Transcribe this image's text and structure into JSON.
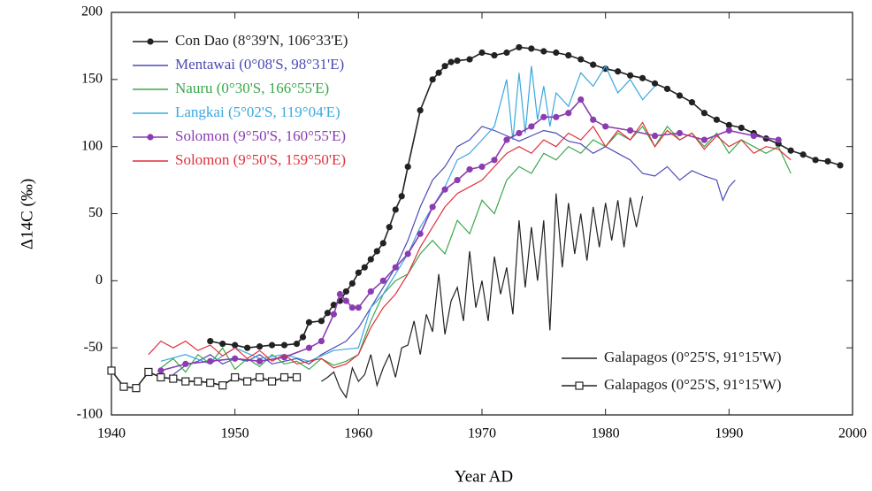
{
  "chart_data": {
    "type": "line",
    "x_label": "Year AD",
    "y_label": "Δ14C (‰)",
    "xlim": [
      1940,
      2000
    ],
    "xticks": [
      1940,
      1950,
      1960,
      1970,
      1980,
      1990,
      2000
    ],
    "ylim": [
      -100,
      200
    ],
    "yticks": [
      -100,
      -50,
      0,
      50,
      100,
      150,
      200
    ],
    "grid": false,
    "series": [
      {
        "name": "Con Dao (8°39'N, 106°33'E)",
        "color": "#222222",
        "marker": "circle",
        "legend": "top-left",
        "x": [
          1948,
          1949,
          1950,
          1951,
          1952,
          1953,
          1954,
          1955,
          1955.5,
          1956,
          1957,
          1957.5,
          1958,
          1958.5,
          1959,
          1959.5,
          1960,
          1960.5,
          1961,
          1961.5,
          1962,
          1962.5,
          1963,
          1963.5,
          1964,
          1965,
          1966,
          1966.5,
          1967,
          1967.5,
          1968,
          1969,
          1970,
          1971,
          1972,
          1973,
          1974,
          1975,
          1976,
          1977,
          1978,
          1979,
          1980,
          1981,
          1982,
          1983,
          1984,
          1985,
          1986,
          1987,
          1988,
          1989,
          1990,
          1991,
          1992,
          1993,
          1994,
          1995,
          1996,
          1997,
          1998,
          1999
        ],
        "values": [
          -45,
          -47,
          -48,
          -50,
          -49,
          -48,
          -48,
          -47,
          -42,
          -31,
          -30,
          -24,
          -18,
          -15,
          -8,
          -2,
          6,
          10,
          16,
          22,
          28,
          40,
          53,
          63,
          85,
          127,
          150,
          155,
          160,
          163,
          164,
          165,
          170,
          168,
          170,
          174,
          173,
          171,
          170,
          168,
          165,
          161,
          158,
          156,
          153,
          151,
          147,
          143,
          138,
          133,
          125,
          120,
          116,
          114,
          110,
          106,
          102,
          97,
          94,
          90,
          89,
          86
        ]
      },
      {
        "name": "Mentawai (0°08'S, 98°31'E)",
        "color": "#4b4bb4",
        "legend": "top-left",
        "x": [
          1945,
          1946,
          1947,
          1948,
          1949,
          1950,
          1951,
          1952,
          1953,
          1954,
          1955,
          1956,
          1957,
          1958,
          1959,
          1960,
          1961,
          1962,
          1963,
          1964,
          1965,
          1966,
          1967,
          1968,
          1969,
          1970,
          1971,
          1972,
          1973,
          1974,
          1975,
          1976,
          1977,
          1978,
          1979,
          1980,
          1981,
          1982,
          1983,
          1984,
          1985,
          1986,
          1987,
          1988,
          1989,
          1989.5,
          1990,
          1990.5
        ],
        "values": [
          -70,
          -63,
          -60,
          -55,
          -62,
          -58,
          -60,
          -55,
          -62,
          -60,
          -58,
          -62,
          -55,
          -50,
          -45,
          -35,
          -20,
          -5,
          10,
          30,
          55,
          75,
          85,
          100,
          105,
          115,
          112,
          108,
          104,
          108,
          112,
          110,
          104,
          102,
          95,
          100,
          95,
          90,
          80,
          78,
          85,
          75,
          82,
          78,
          75,
          60,
          70,
          75
        ]
      },
      {
        "name": "Nauru (0°30'S, 166°55'E)",
        "color": "#3aa84a",
        "legend": "top-left",
        "x": [
          1944,
          1945,
          1946,
          1947,
          1948,
          1949,
          1950,
          1951,
          1952,
          1953,
          1954,
          1955,
          1956,
          1957,
          1958,
          1959,
          1960,
          1961,
          1962,
          1963,
          1964,
          1965,
          1966,
          1967,
          1968,
          1969,
          1970,
          1971,
          1972,
          1973,
          1974,
          1975,
          1976,
          1977,
          1978,
          1979,
          1980,
          1981,
          1982,
          1983,
          1984,
          1985,
          1986,
          1987,
          1988,
          1989,
          1990,
          1991,
          1992,
          1993,
          1994,
          1995
        ],
        "values": [
          -65,
          -58,
          -68,
          -55,
          -62,
          -50,
          -66,
          -58,
          -64,
          -55,
          -62,
          -60,
          -66,
          -58,
          -63,
          -60,
          -55,
          -30,
          -10,
          0,
          5,
          20,
          30,
          20,
          45,
          35,
          60,
          50,
          75,
          85,
          80,
          95,
          90,
          100,
          95,
          105,
          100,
          110,
          105,
          115,
          100,
          115,
          105,
          110,
          100,
          110,
          95,
          105,
          100,
          95,
          100,
          80
        ]
      },
      {
        "name": "Langkai (5°02'S, 119°04'E)",
        "color": "#3aa8e0",
        "legend": "top-left",
        "x": [
          1944,
          1946,
          1948,
          1950,
          1952,
          1954,
          1956,
          1958,
          1960,
          1961,
          1962,
          1963,
          1964,
          1965,
          1966,
          1967,
          1968,
          1969,
          1970,
          1971,
          1972,
          1972.5,
          1973,
          1973.5,
          1974,
          1974.5,
          1975,
          1975.5,
          1976,
          1977,
          1978,
          1979,
          1980,
          1981,
          1982,
          1983,
          1984
        ],
        "values": [
          -60,
          -55,
          -62,
          -50,
          -58,
          -55,
          -60,
          -52,
          -50,
          -20,
          -10,
          5,
          20,
          40,
          55,
          70,
          90,
          95,
          105,
          115,
          150,
          105,
          155,
          110,
          160,
          120,
          145,
          115,
          140,
          130,
          155,
          145,
          160,
          140,
          150,
          135,
          145
        ]
      },
      {
        "name": "Solomon (9°50'S, 160°55'E)",
        "color": "#8a3cb0",
        "marker": "circle",
        "legend": "top-left",
        "x": [
          1944,
          1946,
          1948,
          1950,
          1952,
          1954,
          1956,
          1957,
          1958,
          1958.5,
          1959,
          1959.5,
          1960,
          1961,
          1962,
          1963,
          1964,
          1965,
          1966,
          1967,
          1968,
          1969,
          1970,
          1971,
          1972,
          1973,
          1974,
          1975,
          1976,
          1977,
          1978,
          1979,
          1980,
          1982,
          1984,
          1986,
          1988,
          1990,
          1992,
          1994
        ],
        "values": [
          -67,
          -62,
          -60,
          -58,
          -60,
          -57,
          -50,
          -45,
          -25,
          -10,
          -15,
          -20,
          -20,
          -8,
          0,
          10,
          20,
          35,
          55,
          68,
          75,
          83,
          85,
          90,
          105,
          110,
          115,
          122,
          122,
          125,
          135,
          120,
          115,
          112,
          108,
          110,
          105,
          112,
          108,
          105
        ]
      },
      {
        "name": "Solomon (9°50'S, 159°50'E)",
        "color": "#e0303c",
        "legend": "top-left",
        "x": [
          1943,
          1944,
          1945,
          1946,
          1947,
          1948,
          1949,
          1950,
          1951,
          1952,
          1953,
          1954,
          1955,
          1956,
          1957,
          1958,
          1959,
          1960,
          1961,
          1962,
          1963,
          1964,
          1965,
          1966,
          1967,
          1968,
          1969,
          1970,
          1971,
          1972,
          1973,
          1974,
          1975,
          1976,
          1977,
          1978,
          1979,
          1980,
          1981,
          1982,
          1983,
          1984,
          1985,
          1986,
          1987,
          1988,
          1989,
          1990,
          1991,
          1992,
          1993,
          1994,
          1995
        ],
        "values": [
          -55,
          -45,
          -50,
          -45,
          -52,
          -48,
          -56,
          -50,
          -58,
          -52,
          -60,
          -55,
          -62,
          -60,
          -58,
          -65,
          -62,
          -55,
          -35,
          -20,
          -10,
          5,
          25,
          40,
          55,
          65,
          70,
          75,
          85,
          95,
          100,
          95,
          105,
          100,
          110,
          105,
          115,
          100,
          112,
          105,
          118,
          100,
          112,
          105,
          110,
          98,
          108,
          100,
          105,
          95,
          100,
          98,
          90
        ]
      },
      {
        "name": "Galapagos (0°25'S, 91°15'W)",
        "color": "#222222",
        "legend": "bottom-right",
        "x": [
          1957,
          1957.5,
          1958,
          1958.5,
          1959,
          1959.5,
          1960,
          1960.5,
          1961,
          1961.5,
          1962,
          1962.5,
          1963,
          1963.5,
          1964,
          1964.5,
          1965,
          1965.5,
          1966,
          1966.5,
          1967,
          1967.5,
          1968,
          1968.5,
          1969,
          1969.5,
          1970,
          1970.5,
          1971,
          1971.5,
          1972,
          1972.5,
          1973,
          1973.5,
          1974,
          1974.5,
          1975,
          1975.5,
          1976,
          1976.5,
          1977,
          1977.5,
          1978,
          1978.5,
          1979,
          1979.5,
          1980,
          1980.5,
          1981,
          1981.5,
          1982,
          1982.5,
          1983
        ],
        "values": [
          -75,
          -72,
          -68,
          -80,
          -87,
          -65,
          -75,
          -70,
          -55,
          -78,
          -65,
          -55,
          -72,
          -50,
          -48,
          -30,
          -55,
          -25,
          -38,
          5,
          -40,
          -15,
          -5,
          -30,
          22,
          -20,
          0,
          -30,
          18,
          -10,
          10,
          -25,
          45,
          -5,
          40,
          0,
          45,
          -37,
          65,
          10,
          58,
          20,
          50,
          15,
          55,
          25,
          58,
          30,
          60,
          25,
          62,
          40,
          63
        ]
      },
      {
        "name": "Galapagos (0°25'S, 91°15'W)",
        "color": "#222222",
        "marker": "square",
        "legend": "bottom-right",
        "x": [
          1940,
          1941,
          1942,
          1943,
          1944,
          1945,
          1946,
          1947,
          1948,
          1949,
          1950,
          1951,
          1952,
          1953,
          1954,
          1955
        ],
        "values": [
          -67,
          -79,
          -80,
          -68,
          -72,
          -73,
          -75,
          -75,
          -76,
          -78,
          -72,
          -75,
          -72,
          -75,
          -72,
          -72
        ]
      }
    ]
  }
}
